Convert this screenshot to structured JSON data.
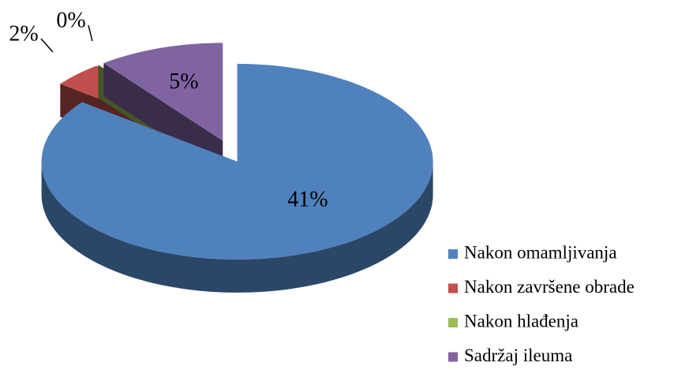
{
  "chart_data": {
    "type": "pie",
    "categories": [
      "Nakon omamljivanja",
      "Nakon završene obrade",
      "Nakon hlađenja",
      "Sadržaj ileuma"
    ],
    "values": [
      41,
      2,
      0,
      5
    ],
    "value_labels": [
      "41%",
      "2%",
      "0%",
      "5%"
    ],
    "colors": [
      "#4f81bd",
      "#c0504d",
      "#9bbb59",
      "#8064a2"
    ],
    "legend": "right"
  }
}
